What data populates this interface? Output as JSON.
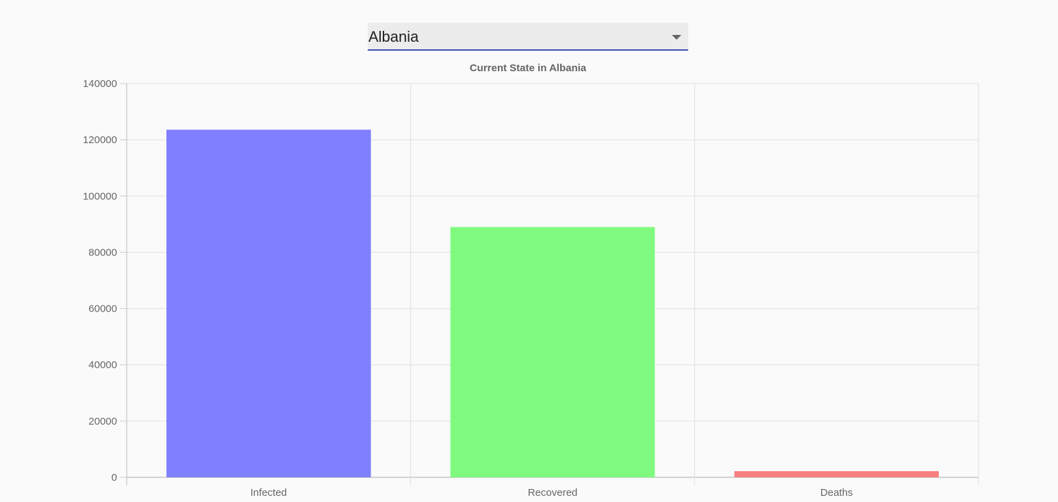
{
  "country_select": {
    "selected": "Albania"
  },
  "icons": {
    "dropdown": "chevron-down-icon"
  },
  "chart_data": {
    "type": "bar",
    "title": "Current State in Albania",
    "categories": [
      "Infected",
      "Recovered",
      "Deaths"
    ],
    "values": [
      123600,
      89000,
      2200
    ],
    "colors": [
      "#7f7fff",
      "#7ffa7f",
      "#f77f7f"
    ],
    "ylim": [
      0,
      140000
    ],
    "yticks": [
      0,
      20000,
      40000,
      60000,
      80000,
      100000,
      120000,
      140000
    ],
    "grid": true,
    "legend": "none"
  }
}
